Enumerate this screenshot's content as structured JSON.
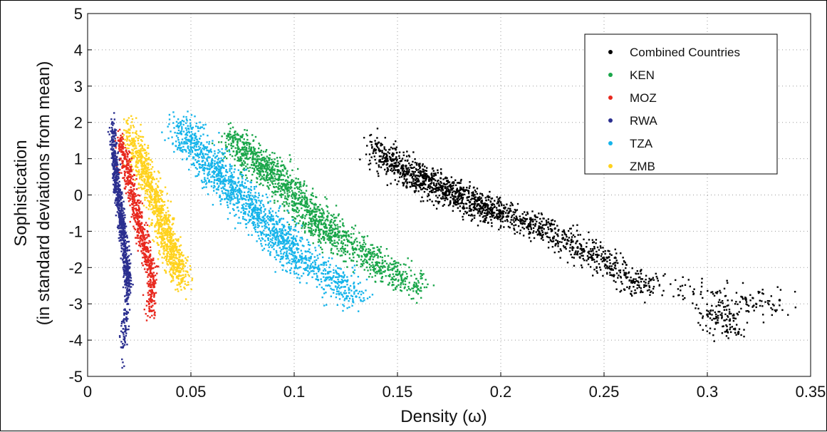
{
  "chart_data": {
    "type": "scatter",
    "title": "",
    "xlabel": "Density (ω)",
    "ylabel_line1": "Sophistication",
    "ylabel_line2": "(in standard deviations from mean)",
    "xlim": [
      0,
      0.35
    ],
    "ylim": [
      -5,
      5
    ],
    "x_ticks": [
      "0",
      "0.05",
      "0.1",
      "0.15",
      "0.2",
      "0.25",
      "0.3",
      "0.35"
    ],
    "y_ticks": [
      "5",
      "4",
      "3",
      "2",
      "1",
      "0",
      "-1",
      "-2",
      "-3",
      "-4",
      "-5"
    ],
    "grid": true,
    "legend_position": "top-right",
    "series": [
      {
        "name": "Combined Countries",
        "color": "#000000",
        "points": [
          [
            0.14,
            1.4
          ],
          [
            0.145,
            1.0
          ],
          [
            0.15,
            0.8
          ],
          [
            0.155,
            0.6
          ],
          [
            0.16,
            0.4
          ],
          [
            0.165,
            0.5
          ],
          [
            0.17,
            0.2
          ],
          [
            0.175,
            0.1
          ],
          [
            0.18,
            0.0
          ],
          [
            0.185,
            -0.2
          ],
          [
            0.19,
            -0.3
          ],
          [
            0.195,
            -0.4
          ],
          [
            0.2,
            -0.5
          ],
          [
            0.21,
            -0.7
          ],
          [
            0.22,
            -0.9
          ],
          [
            0.23,
            -1.2
          ],
          [
            0.24,
            -1.5
          ],
          [
            0.25,
            -1.8
          ],
          [
            0.26,
            -2.2
          ],
          [
            0.27,
            -2.5
          ],
          [
            0.3,
            -3.3
          ],
          [
            0.315,
            -3.8
          ],
          [
            0.335,
            -2.9
          ]
        ]
      },
      {
        "name": "KEN",
        "color": "#1aa64a",
        "points": [
          [
            0.07,
            1.6
          ],
          [
            0.075,
            1.3
          ],
          [
            0.08,
            1.0
          ],
          [
            0.085,
            0.8
          ],
          [
            0.09,
            0.6
          ],
          [
            0.095,
            0.3
          ],
          [
            0.1,
            0.0
          ],
          [
            0.105,
            -0.3
          ],
          [
            0.11,
            -0.6
          ],
          [
            0.115,
            -0.9
          ],
          [
            0.12,
            -1.1
          ],
          [
            0.13,
            -1.5
          ],
          [
            0.14,
            -1.9
          ],
          [
            0.15,
            -2.2
          ],
          [
            0.16,
            -2.6
          ]
        ]
      },
      {
        "name": "MOZ",
        "color": "#e8281e",
        "points": [
          [
            0.015,
            1.5
          ],
          [
            0.018,
            1.0
          ],
          [
            0.02,
            0.5
          ],
          [
            0.022,
            0.0
          ],
          [
            0.024,
            -0.5
          ],
          [
            0.026,
            -1.0
          ],
          [
            0.028,
            -1.5
          ],
          [
            0.03,
            -2.0
          ],
          [
            0.032,
            -2.5
          ],
          [
            0.03,
            -3.2
          ]
        ]
      },
      {
        "name": "RWA",
        "color": "#2b2f8f",
        "points": [
          [
            0.012,
            2.0
          ],
          [
            0.013,
            1.0
          ],
          [
            0.014,
            0.5
          ],
          [
            0.015,
            0.0
          ],
          [
            0.016,
            -0.5
          ],
          [
            0.017,
            -1.0
          ],
          [
            0.018,
            -1.5
          ],
          [
            0.019,
            -2.0
          ],
          [
            0.02,
            -2.5
          ],
          [
            0.017,
            -4.2
          ]
        ]
      },
      {
        "name": "TZA",
        "color": "#16b4ea",
        "points": [
          [
            0.045,
            2.0
          ],
          [
            0.05,
            1.5
          ],
          [
            0.055,
            1.2
          ],
          [
            0.06,
            0.8
          ],
          [
            0.065,
            0.5
          ],
          [
            0.07,
            0.2
          ],
          [
            0.075,
            -0.1
          ],
          [
            0.08,
            -0.4
          ],
          [
            0.085,
            -0.7
          ],
          [
            0.09,
            -1.0
          ],
          [
            0.095,
            -1.3
          ],
          [
            0.1,
            -1.6
          ],
          [
            0.11,
            -2.0
          ],
          [
            0.12,
            -2.4
          ],
          [
            0.13,
            -2.8
          ]
        ]
      },
      {
        "name": "ZMB",
        "color": "#ffd21e",
        "points": [
          [
            0.02,
            1.8
          ],
          [
            0.024,
            1.2
          ],
          [
            0.027,
            0.8
          ],
          [
            0.03,
            0.3
          ],
          [
            0.033,
            -0.2
          ],
          [
            0.036,
            -0.7
          ],
          [
            0.038,
            -1.1
          ],
          [
            0.04,
            -1.5
          ],
          [
            0.043,
            -1.9
          ],
          [
            0.046,
            -2.3
          ]
        ]
      }
    ]
  }
}
